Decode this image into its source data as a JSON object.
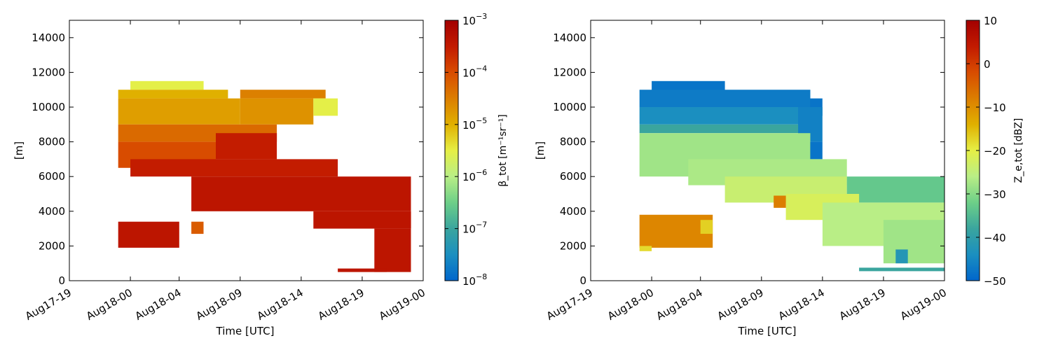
{
  "chart_data": [
    {
      "type": "heatmap",
      "title": "",
      "xlabel": "Time [UTC]",
      "ylabel": "[m]",
      "x_ticks": [
        "Aug17-19",
        "Aug18-00",
        "Aug18-04",
        "Aug18-09",
        "Aug18-14",
        "Aug18-19",
        "Aug19-00"
      ],
      "y_ticks": [
        "0",
        "2000",
        "4000",
        "6000",
        "8000",
        "10000",
        "12000",
        "14000"
      ],
      "xlim": [
        "Aug17-19",
        "Aug19-00"
      ],
      "ylim": [
        0,
        15000
      ],
      "colorbar": {
        "label": "β_tot [m⁻¹sr⁻¹]",
        "scale": "log",
        "range": [
          1e-08,
          0.001
        ],
        "ticks": [
          {
            "base": "10",
            "exp": "−8"
          },
          {
            "base": "10",
            "exp": "−7"
          },
          {
            "base": "10",
            "exp": "−6"
          },
          {
            "base": "10",
            "exp": "−5"
          },
          {
            "base": "10",
            "exp": "−4"
          },
          {
            "base": "10",
            "exp": "−3"
          }
        ]
      },
      "grid": false,
      "regions": [
        {
          "x": [
            "Aug18-00",
            "Aug18-06"
          ],
          "y": [
            11000,
            11500
          ],
          "value": 3e-06
        },
        {
          "x": [
            "Aug17-23",
            "Aug18-08"
          ],
          "y": [
            10500,
            11000
          ],
          "value": 1e-05
        },
        {
          "x": [
            "Aug18-09",
            "Aug18-16"
          ],
          "y": [
            10500,
            11000
          ],
          "value": 3e-05
        },
        {
          "x": [
            "Aug17-23",
            "Aug18-09"
          ],
          "y": [
            9000,
            10500
          ],
          "value": 1.5e-05
        },
        {
          "x": [
            "Aug18-09",
            "Aug18-15"
          ],
          "y": [
            9000,
            10500
          ],
          "value": 2e-05
        },
        {
          "x": [
            "Aug18-15",
            "Aug18-17"
          ],
          "y": [
            9500,
            10500
          ],
          "value": 3e-06
        },
        {
          "x": [
            "Aug17-23",
            "Aug18-12"
          ],
          "y": [
            8000,
            9000
          ],
          "value": 5e-05
        },
        {
          "x": [
            "Aug17-23",
            "Aug18-07"
          ],
          "y": [
            6500,
            8000
          ],
          "value": 0.0001
        },
        {
          "x": [
            "Aug18-07",
            "Aug18-12"
          ],
          "y": [
            7000,
            8500
          ],
          "value": 0.0003
        },
        {
          "x": [
            "Aug18-00",
            "Aug18-17"
          ],
          "y": [
            6000,
            7000
          ],
          "value": 0.0003
        },
        {
          "x": [
            "Aug18-05",
            "Aug18-23"
          ],
          "y": [
            4000,
            6000
          ],
          "value": 0.0004
        },
        {
          "x": [
            "Aug18-15",
            "Aug18-23"
          ],
          "y": [
            3000,
            4000
          ],
          "value": 0.0004
        },
        {
          "x": [
            "Aug18-20",
            "Aug18-23"
          ],
          "y": [
            500,
            3000
          ],
          "value": 0.0004
        },
        {
          "x": [
            "Aug18-17",
            "Aug18-21"
          ],
          "y": [
            500,
            700
          ],
          "value": 0.0004
        },
        {
          "x": [
            "Aug17-23",
            "Aug18-04"
          ],
          "y": [
            1900,
            3400
          ],
          "value": 0.0004
        },
        {
          "x": [
            "Aug18-05",
            "Aug18-06"
          ],
          "y": [
            2700,
            3400
          ],
          "value": 7e-05
        }
      ]
    },
    {
      "type": "heatmap",
      "title": "",
      "xlabel": "Time [UTC]",
      "ylabel": "[m]",
      "x_ticks": [
        "Aug17-19",
        "Aug18-00",
        "Aug18-04",
        "Aug18-09",
        "Aug18-14",
        "Aug18-19",
        "Aug19-00"
      ],
      "y_ticks": [
        "0",
        "2000",
        "4000",
        "6000",
        "8000",
        "10000",
        "12000",
        "14000"
      ],
      "xlim": [
        "Aug17-19",
        "Aug19-00"
      ],
      "ylim": [
        0,
        15000
      ],
      "colorbar": {
        "label": "Z_e,tot [dBZ]",
        "scale": "linear",
        "range": [
          -50,
          10
        ],
        "ticks": [
          "10",
          "0",
          "−10",
          "−20",
          "−30",
          "−40",
          "−50"
        ]
      },
      "grid": false,
      "regions": [
        {
          "x": [
            "Aug18-00",
            "Aug18-06"
          ],
          "y": [
            10500,
            11500
          ],
          "value": -48
        },
        {
          "x": [
            "Aug17-23",
            "Aug18-13"
          ],
          "y": [
            10000,
            11000
          ],
          "value": -47
        },
        {
          "x": [
            "Aug18-13",
            "Aug18-14"
          ],
          "y": [
            9500,
            10500
          ],
          "value": -48
        },
        {
          "x": [
            "Aug17-23",
            "Aug18-12"
          ],
          "y": [
            9000,
            10000
          ],
          "value": -44
        },
        {
          "x": [
            "Aug18-12",
            "Aug18-14"
          ],
          "y": [
            8000,
            10000
          ],
          "value": -46
        },
        {
          "x": [
            "Aug17-23",
            "Aug18-12"
          ],
          "y": [
            8500,
            9000
          ],
          "value": -38
        },
        {
          "x": [
            "Aug17-23",
            "Aug18-13"
          ],
          "y": [
            6000,
            8500
          ],
          "value": -28
        },
        {
          "x": [
            "Aug18-13",
            "Aug18-14"
          ],
          "y": [
            7000,
            8000
          ],
          "value": -48
        },
        {
          "x": [
            "Aug18-03",
            "Aug18-16"
          ],
          "y": [
            5500,
            7000
          ],
          "value": -27
        },
        {
          "x": [
            "Aug18-06",
            "Aug18-16"
          ],
          "y": [
            4500,
            6000
          ],
          "value": -24
        },
        {
          "x": [
            "Aug18-16",
            "Aug19-00"
          ],
          "y": [
            4500,
            6000
          ],
          "value": -33
        },
        {
          "x": [
            "Aug18-11",
            "Aug18-17"
          ],
          "y": [
            3500,
            5000
          ],
          "value": -22
        },
        {
          "x": [
            "Aug18-14",
            "Aug19-00"
          ],
          "y": [
            2000,
            4500
          ],
          "value": -26
        },
        {
          "x": [
            "Aug18-19",
            "Aug19-00"
          ],
          "y": [
            1000,
            3500
          ],
          "value": -28
        },
        {
          "x": [
            "Aug18-20",
            "Aug18-21"
          ],
          "y": [
            1000,
            1800
          ],
          "value": -42
        },
        {
          "x": [
            "Aug18-17",
            "Aug19-00"
          ],
          "y": [
            550,
            750
          ],
          "value": -38
        },
        {
          "x": [
            "Aug18-10",
            "Aug18-11"
          ],
          "y": [
            4200,
            4900
          ],
          "value": -8
        },
        {
          "x": [
            "Aug17-23",
            "Aug18-05"
          ],
          "y": [
            1900,
            3800
          ],
          "value": -9
        },
        {
          "x": [
            "Aug18-04",
            "Aug18-05"
          ],
          "y": [
            2700,
            3500
          ],
          "value": -17
        },
        {
          "x": [
            "Aug17-23",
            "Aug18-00"
          ],
          "y": [
            1700,
            2000
          ],
          "value": -18
        }
      ]
    }
  ]
}
